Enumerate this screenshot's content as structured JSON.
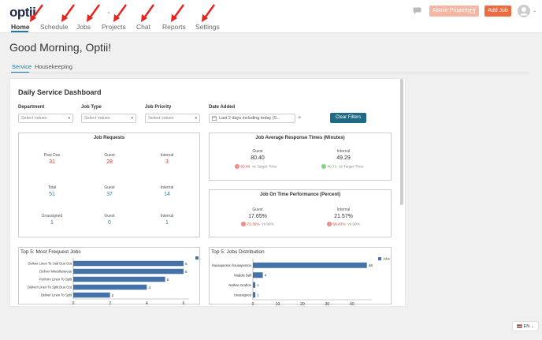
{
  "app": {
    "logo": "optii"
  },
  "nav": [
    "Home",
    "Schedule",
    "Jobs",
    "Projects",
    "Chat",
    "Reports",
    "Settings"
  ],
  "header": {
    "property_button": "Above Property",
    "add_job": "Add Job"
  },
  "greeting": "Good Morning, Optii!",
  "tabs": [
    "Service",
    "Housekeeping"
  ],
  "dashboard": {
    "title": "Daily Service Dashboard",
    "filters": {
      "department_label": "Department",
      "department_value": "Select values",
      "jobtype_label": "Job Type",
      "jobtype_value": "Select values",
      "priority_label": "Job Priority",
      "priority_value": "Select values",
      "date_label": "Date Added",
      "date_value": "Last 2 days including today (0...",
      "clear": "Clear Filters"
    },
    "job_requests": {
      "title": "Job Requests",
      "rows": [
        [
          {
            "label": "Past Due",
            "value": "31"
          },
          {
            "label": "Guest",
            "value": "28"
          },
          {
            "label": "Internal",
            "value": "3"
          }
        ],
        [
          {
            "label": "Total",
            "value": "51"
          },
          {
            "label": "Guest",
            "value": "37"
          },
          {
            "label": "Internal",
            "value": "14"
          }
        ],
        [
          {
            "label": "Unassigned",
            "value": "1"
          },
          {
            "label": "Guest",
            "value": "0"
          },
          {
            "label": "Internal",
            "value": "1"
          }
        ]
      ]
    },
    "response": {
      "title": "Job Average Response Times (Minutes)",
      "guest_label": "Guest",
      "guest_value": "80.40",
      "guest_sub": "60.40",
      "guest_target": "vs Target Time",
      "internal_label": "Internal",
      "internal_value": "49.29",
      "internal_sub": "40.71",
      "internal_target": "vs Target Time"
    },
    "ontime": {
      "title": "Job On Time Performance (Percent)",
      "guest_label": "Guest",
      "guest_value": "17.65%",
      "guest_sub": "72.35%",
      "guest_target": "vs 90%",
      "internal_label": "Internal",
      "internal_value": "21.57%",
      "internal_sub": "68.43%",
      "internal_target": "vs 90%"
    }
  },
  "lang": "EN",
  "chart_data": [
    {
      "type": "bar",
      "title": "Top 5: Most Frequest Jobs",
      "legend": "Jobs",
      "categories": [
        "Deliver Linen To Jodi Due Out",
        "Deliver Miscellaneous",
        "Perform Linen To Split",
        "Deliver Linen To Split Due Out",
        "Deliver Linen To Split"
      ],
      "values": [
        6,
        6,
        5,
        4,
        2
      ],
      "xticks": [
        "0",
        "2",
        "4",
        "6"
      ],
      "xlim": [
        0,
        6.3
      ],
      "color": "#4572a7"
    },
    {
      "type": "bar",
      "title": "Top 5: Jobs Distribution",
      "legend": "Jobs",
      "categories": [
        "Houseperson houseperson",
        "Maddie Ball",
        "Nathan Grafton",
        "Unassigned"
      ],
      "values": [
        46,
        4,
        1,
        1
      ],
      "xticks": [
        "0",
        "10",
        "20",
        "30",
        "40"
      ],
      "xlim": [
        0,
        48
      ],
      "color": "#4572a7"
    }
  ]
}
